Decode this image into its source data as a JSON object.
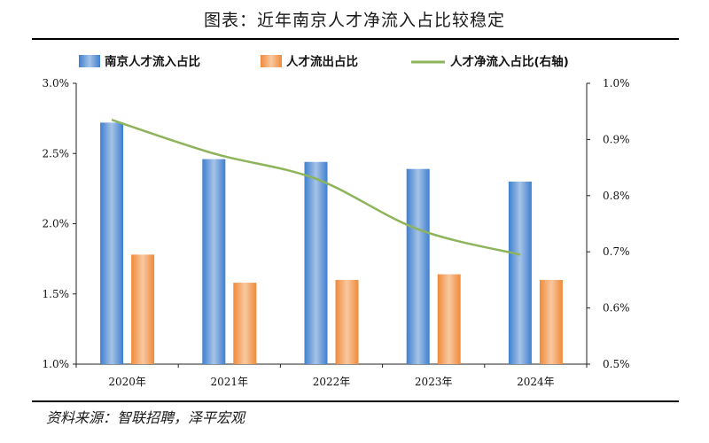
{
  "title": "图表：近年南京人才净流入占比较稳定",
  "source": "资料来源：智联招聘，泽平宏观",
  "colors": {
    "bar_blue": "#3f7fd0",
    "bar_blue_light": "#a6c3e6",
    "bar_orange": "#ef8a3a",
    "bar_orange_light": "#f9c8a0",
    "line_green": "#8db45a"
  },
  "chart_data": {
    "type": "bar",
    "categories": [
      "2020年",
      "2021年",
      "2022年",
      "2023年",
      "2024年"
    ],
    "series": [
      {
        "name": "南京人才流入占比",
        "type": "bar",
        "axis": "left",
        "values": [
          2.72,
          2.46,
          2.44,
          2.39,
          2.3
        ]
      },
      {
        "name": "人才流出占比",
        "type": "bar",
        "axis": "left",
        "values": [
          1.78,
          1.58,
          1.6,
          1.64,
          1.6
        ]
      },
      {
        "name": "人才净流入占比(右轴)",
        "type": "line",
        "axis": "right",
        "values": [
          0.935,
          0.875,
          0.83,
          0.74,
          0.695
        ]
      }
    ],
    "y_left": {
      "ylim": [
        1.0,
        3.0
      ],
      "ticks": [
        "1.0%",
        "1.5%",
        "2.0%",
        "2.5%",
        "3.0%"
      ],
      "tick_values": [
        1.0,
        1.5,
        2.0,
        2.5,
        3.0
      ]
    },
    "y_right": {
      "ylim": [
        0.5,
        1.0
      ],
      "ticks": [
        "0.5%",
        "0.6%",
        "0.7%",
        "0.8%",
        "0.9%",
        "1.0%"
      ],
      "tick_values": [
        0.5,
        0.6,
        0.7,
        0.8,
        0.9,
        1.0
      ]
    },
    "legend_position": "top",
    "grid": false
  }
}
